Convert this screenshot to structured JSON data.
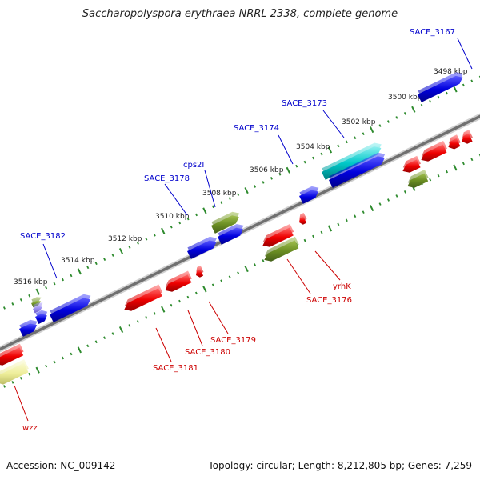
{
  "title": "Saccharopolyspora erythraea NRRL 2338, complete genome",
  "footer": {
    "accession": "Accession: NC_009142",
    "summary": "Topology: circular; Length: 8,212,805 bp; Genes: 7,259"
  },
  "ticks": [
    "3498 kbp",
    "3500 kbp",
    "3502 kbp",
    "3504 kbp",
    "3506 kbp",
    "3508 kbp",
    "3510 kbp",
    "3512 kbp",
    "3514 kbp",
    "3516 kbp"
  ],
  "labels_forward": [
    "SACE_3167",
    "SACE_3173",
    "SACE_3174",
    "cps2I",
    "SACE_3178",
    "SACE_3182"
  ],
  "labels_reverse": [
    "yrhK",
    "SACE_3176",
    "SACE_3179",
    "SACE_3180",
    "SACE_3181",
    "wzz"
  ],
  "colors": {
    "forward_label": "#0000cc",
    "reverse_label": "#cc0000",
    "forward_gene": "#0000dd",
    "reverse_gene": "#ee0000",
    "olive_gene": "#6b8e23",
    "cyan_gene": "#00c8c8",
    "yellow_gene": "#eeee99",
    "tick": "#2e8b2e",
    "backbone": "#808080"
  }
}
